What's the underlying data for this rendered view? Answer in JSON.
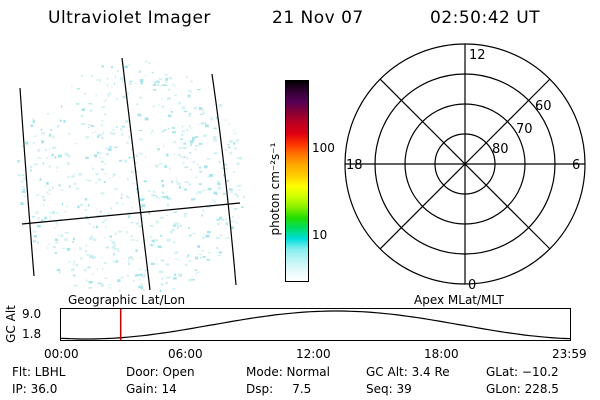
{
  "header": {
    "title": "Ultraviolet Imager",
    "date": "21 Nov 07",
    "time": "02:50:42 UT"
  },
  "colorbar": {
    "unit_label": "photon cm⁻²s⁻¹",
    "ticks": [
      "100",
      "10"
    ],
    "colors": [
      "#000000",
      "#330033",
      "#550055",
      "#880033",
      "#bb0022",
      "#dd0011",
      "#ff3300",
      "#ff7700",
      "#ffaa00",
      "#ffcc00",
      "#ffff00",
      "#ccff00",
      "#88ee00",
      "#22dd00",
      "#00dd66",
      "#00dddd",
      "#88eeee",
      "#bbf5f5",
      "#e6fafa",
      "#ffffff"
    ]
  },
  "polar_plot": {
    "mlt_labels": {
      "top": "12",
      "left": "18",
      "right": "6",
      "bottom": "0"
    },
    "lat_labels": [
      "60",
      "70",
      "80"
    ]
  },
  "timeline": {
    "left_title": "Geographic Lat/Lon",
    "right_title": "Apex MLat/MLT",
    "yaxis_label": "GC Alt",
    "ymax": "9.0",
    "ymin": "1.8",
    "time_ticks": [
      "00:00",
      "06:00",
      "12:00",
      "18:00",
      "23:59"
    ],
    "current_time_fraction": 0.117,
    "accent_color": "#cc0000"
  },
  "status": {
    "flt": "Flt: LBHL",
    "ip": "IP: 36.0",
    "door": "Door: Open",
    "gain": "Gain: 14",
    "mode": "Mode: Normal",
    "dsp": "Dsp:     7.5",
    "gc_alt": "GC Alt: 3.4 Re",
    "seq": "Seq: 39",
    "glat": "GLat: −10.2",
    "glon": "GLon: 228.5"
  }
}
